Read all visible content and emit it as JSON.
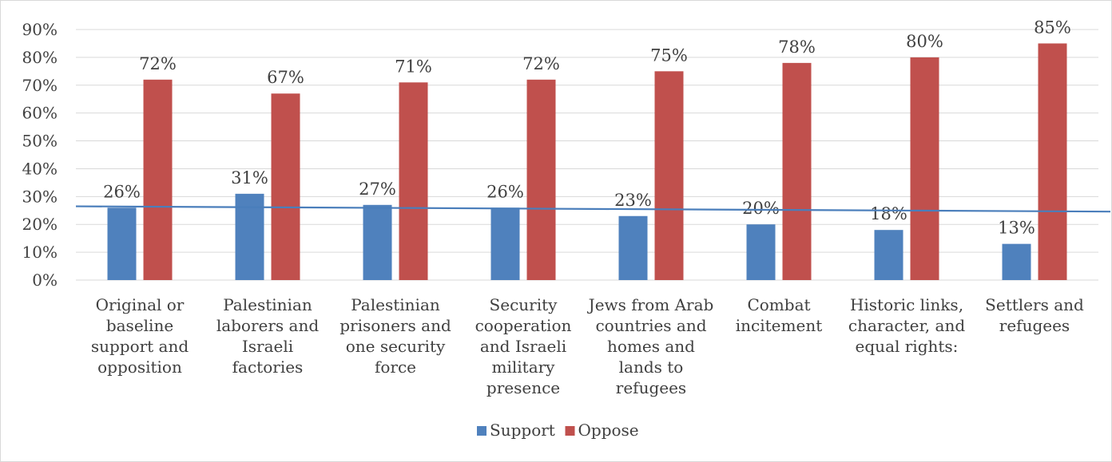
{
  "chart_data": {
    "type": "bar",
    "title": "",
    "xlabel": "",
    "ylabel": "",
    "ylim": [
      0,
      90
    ],
    "y_ticks": [
      "0%",
      "10%",
      "20%",
      "30%",
      "40%",
      "50%",
      "60%",
      "70%",
      "80%",
      "90%"
    ],
    "grid": true,
    "legend_position": "bottom",
    "categories": [
      [
        "Original or",
        "baseline",
        "support and",
        "opposition"
      ],
      [
        "Palestinian",
        "laborers and",
        "Israeli",
        "factories"
      ],
      [
        "Palestinian",
        "prisoners and",
        "one security",
        "force"
      ],
      [
        "Security",
        "cooperation",
        "and Israeli",
        "military",
        "presence"
      ],
      [
        "Jews from Arab",
        "countries and",
        "homes and",
        "lands to",
        "refugees"
      ],
      [
        "Combat",
        "incitement"
      ],
      [
        "Historic links,",
        "character, and",
        "equal rights:"
      ],
      [
        "Settlers and",
        "refugees"
      ]
    ],
    "series": [
      {
        "name": "Support",
        "color": "#4f81bd",
        "values": [
          26,
          31,
          27,
          26,
          23,
          20,
          18,
          13
        ],
        "labels": [
          "26%",
          "31%",
          "27%",
          "26%",
          "23%",
          "20%",
          "18%",
          "13%"
        ]
      },
      {
        "name": "Oppose",
        "color": "#c0504d",
        "values": [
          72,
          67,
          71,
          72,
          75,
          78,
          80,
          85
        ],
        "labels": [
          "72%",
          "67%",
          "71%",
          "72%",
          "75%",
          "78%",
          "80%",
          "85%"
        ]
      }
    ],
    "trendline": {
      "series": "Support",
      "color": "#4a7ebb",
      "start_value": 26.5,
      "end_value": 24.6
    }
  }
}
